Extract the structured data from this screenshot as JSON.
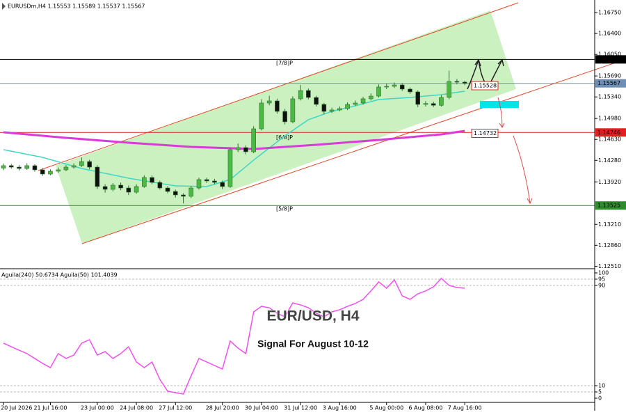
{
  "header": {
    "symbol_info": "EURUSDm,H4 1.15553 1.15589 1.15537 1.15567"
  },
  "overlay": {
    "title": "EUR/USD, H4",
    "subtitle": "Signal For August 10-12"
  },
  "chart_data": [
    {
      "type": "candlestick",
      "categories": [
        "20 Jul 2026",
        null,
        null,
        null,
        null,
        null,
        "21 Jul 16:00",
        null,
        null,
        null,
        null,
        null,
        "23 Jul 00:00",
        null,
        null,
        null,
        null,
        "24 Jul 08:00",
        null,
        null,
        null,
        null,
        "27 Jul 12:00",
        null,
        null,
        null,
        null,
        null,
        "28 Jul 20:00",
        null,
        null,
        null,
        null,
        "30 Jul 04:00",
        null,
        null,
        null,
        null,
        "31 Jul 12:00",
        null,
        null,
        null,
        null,
        "3 Aug 16:00",
        null,
        null,
        null,
        null,
        null,
        "5 Aug 00:00",
        null,
        null,
        null,
        null,
        "6 Aug 08:00",
        null,
        null,
        null,
        null,
        "7 Aug 16:00"
      ],
      "open": [
        1.1415,
        1.14191,
        1.14167,
        1.14144,
        1.14191,
        1.14121,
        1.14051,
        1.14098,
        1.14121,
        1.14167,
        1.14191,
        1.1426,
        1.14167,
        1.13842,
        1.13795,
        1.13865,
        1.13818,
        1.13748,
        1.13842,
        1.13993,
        1.13911,
        1.13818,
        1.1376,
        1.13702,
        1.13679,
        1.13818,
        1.13958,
        1.13935,
        1.13911,
        1.13842,
        1.14458,
        1.14493,
        1.14423,
        1.14807,
        1.15238,
        1.15273,
        1.15098,
        1.14924,
        1.15308,
        1.15447,
        1.15331,
        1.15215,
        1.15098,
        1.15122,
        1.15145,
        1.15215,
        1.15238,
        1.15308,
        1.15354,
        1.15506,
        1.15517,
        1.1554,
        1.15471,
        1.15424,
        1.15215,
        1.1523,
        1.152,
        1.15331,
        1.15599,
        1.15587
      ],
      "high": [
        1.14225,
        1.1422,
        1.142,
        1.1423,
        1.14215,
        1.1415,
        1.1413,
        1.1416,
        1.142,
        1.1423,
        1.1433,
        1.1429,
        1.142,
        1.1388,
        1.139,
        1.1391,
        1.1386,
        1.1388,
        1.1403,
        1.1403,
        1.1394,
        1.1385,
        1.1379,
        1.1373,
        1.1385,
        1.1399,
        1.1399,
        1.1397,
        1.1394,
        1.1449,
        1.1456,
        1.1453,
        1.1485,
        1.153,
        1.1536,
        1.1531,
        1.1514,
        1.1535,
        1.1554,
        1.1548,
        1.1536,
        1.1524,
        1.1516,
        1.1518,
        1.1525,
        1.1528,
        1.1534,
        1.154,
        1.1555,
        1.1556,
        1.1558,
        1.1557,
        1.155,
        1.1545,
        1.1527,
        1.1526,
        1.1537,
        1.1578,
        1.1564,
        1.1561
      ],
      "low": [
        1.14115,
        1.1414,
        1.1411,
        1.1412,
        1.1409,
        1.1402,
        1.1403,
        1.1407,
        1.141,
        1.1414,
        1.1417,
        1.1413,
        1.138,
        1.1374,
        1.1376,
        1.1378,
        1.137,
        1.1372,
        1.1382,
        1.1388,
        1.1379,
        1.1373,
        1.1366,
        1.1356,
        1.1365,
        1.1379,
        1.139,
        1.1388,
        1.138,
        1.1382,
        1.1442,
        1.1438,
        1.144,
        1.1478,
        1.152,
        1.1506,
        1.1488,
        1.149,
        1.1528,
        1.153,
        1.1518,
        1.1505,
        1.1507,
        1.151,
        1.1512,
        1.1519,
        1.1521,
        1.1528,
        1.1533,
        1.1547,
        1.1549,
        1.1544,
        1.1539,
        1.1517,
        1.1518,
        1.1517,
        1.1518,
        1.153,
        1.1555,
        1.15537
      ],
      "close": [
        1.14191,
        1.14167,
        1.14144,
        1.14191,
        1.14121,
        1.14051,
        1.14098,
        1.14121,
        1.14167,
        1.14191,
        1.1426,
        1.14167,
        1.13842,
        1.13795,
        1.13865,
        1.13818,
        1.13748,
        1.13842,
        1.13993,
        1.13911,
        1.13818,
        1.1376,
        1.13702,
        1.13679,
        1.13818,
        1.13958,
        1.13935,
        1.13911,
        1.13842,
        1.14458,
        1.14493,
        1.14423,
        1.14807,
        1.15238,
        1.15273,
        1.15098,
        1.14924,
        1.15308,
        1.15447,
        1.15331,
        1.15215,
        1.15098,
        1.15122,
        1.15145,
        1.15215,
        1.15238,
        1.15308,
        1.15354,
        1.15506,
        1.15517,
        1.1554,
        1.15471,
        1.15424,
        1.15215,
        1.1523,
        1.152,
        1.15331,
        1.15599,
        1.15587,
        1.15567
      ],
      "up_color": "#4cb944",
      "down_color": "#111111",
      "wick_color": "#2f6f2f",
      "ylim": [
        1.1248,
        1.1696
      ],
      "yticks": [
        {
          "value": 1.1675,
          "label": "1.16750"
        },
        {
          "value": 1.164,
          "label": "1.16400"
        },
        {
          "value": 1.1605,
          "label": "1.16050"
        },
        {
          "value": 1.1569,
          "label": "1.15690"
        },
        {
          "value": 1.1534,
          "label": "1.15340"
        },
        {
          "value": 1.1498,
          "label": "1.14980"
        },
        {
          "value": 1.1463,
          "label": "1.14630"
        },
        {
          "value": 1.1428,
          "label": "1.14280"
        },
        {
          "value": 1.1392,
          "label": "1.13920"
        },
        {
          "value": 1.1321,
          "label": "1.13210"
        },
        {
          "value": 1.1286,
          "label": "1.12860"
        },
        {
          "value": 1.1251,
          "label": "1.12510"
        }
      ],
      "lines": [
        {
          "color": "#3fd6c6",
          "x": [
            0,
            5,
            10,
            16,
            22,
            26,
            29,
            32,
            36,
            39,
            42,
            45,
            48,
            52,
            56,
            59
          ],
          "values": [
            1.14458,
            1.1433,
            1.14144,
            1.13981,
            1.13853,
            1.13842,
            1.13958,
            1.14284,
            1.14691,
            1.14959,
            1.15098,
            1.15191,
            1.15296,
            1.15331,
            1.15378,
            1.15436
          ]
        },
        {
          "color": "#d93bd9",
          "x": [
            0,
            8,
            16,
            24,
            32,
            40,
            48,
            56,
            59
          ],
          "values": [
            1.14749,
            1.14656,
            1.14575,
            1.14505,
            1.1447,
            1.1454,
            1.14621,
            1.14714,
            1.14772
          ]
        }
      ],
      "levels": [
        {
          "value": 1.15967,
          "color": "#000000",
          "label": "[7/8]P"
        },
        {
          "value": 1.15567,
          "color": "#6d8fb5"
        },
        {
          "value": 1.14746,
          "color": "#e02020",
          "label": "[6/8]P"
        },
        {
          "value": 1.13525,
          "color": "#2e8b2e",
          "label": "[5/8]P"
        }
      ],
      "price_tags": [
        {
          "value": 1.15528,
          "color": "#e02020"
        },
        {
          "value": 1.14732,
          "color": "#e02020"
        }
      ]
    },
    {
      "type": "line",
      "title": "Aguila(240) 50.6734 Aguila(50) 101.4039",
      "series": [
        {
          "color": "#f050f0",
          "values": [
            43.9,
            41.1,
            38.3,
            35.6,
            31.7,
            27.8,
            24.4,
            35.6,
            31.7,
            34.4,
            43.9,
            46.7,
            34.4,
            37.2,
            31.7,
            35.6,
            41.1,
            28.9,
            24.4,
            28.9,
            15,
            5.6,
            4.4,
            3.3,
            17.8,
            31.7,
            28.9,
            26.1,
            23.3,
            45.6,
            40,
            35.6,
            68.9,
            73.3,
            72.2,
            67.8,
            65,
            76.1,
            74.4,
            72.2,
            67.8,
            65,
            68.9,
            70.6,
            73.3,
            75.6,
            78.9,
            85.6,
            92.8,
            87.8,
            94.4,
            81.7,
            78.9,
            83.3,
            85.6,
            88.9,
            95.6,
            90,
            88.3,
            87.8
          ]
        }
      ],
      "ylim": [
        0,
        100
      ],
      "yticks": [
        0,
        5,
        10,
        90,
        95,
        100
      ]
    }
  ]
}
